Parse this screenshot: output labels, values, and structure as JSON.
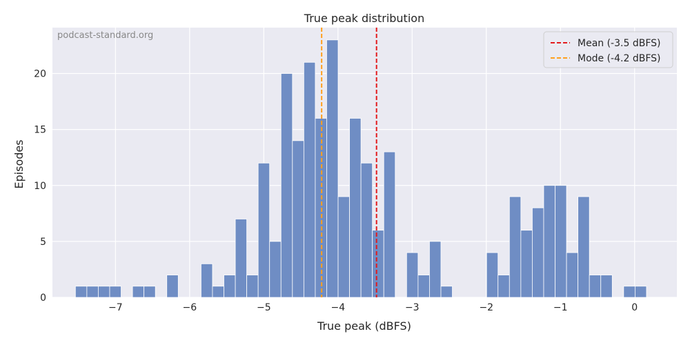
{
  "chart_data": {
    "type": "bar",
    "title": "True peak distribution",
    "xlabel": "True peak (dBFS)",
    "ylabel": "Episodes",
    "watermark": "podcast-standard.org",
    "xlim": [
      -7.85,
      0.57
    ],
    "ylim": [
      0,
      24.1
    ],
    "xticks": [
      -7,
      -6,
      -5,
      -4,
      -3,
      -2,
      -1,
      0
    ],
    "xtick_labels": [
      "−7",
      "−6",
      "−5",
      "−4",
      "−3",
      "−2",
      "−1",
      "0"
    ],
    "yticks": [
      0,
      5,
      10,
      15,
      20
    ],
    "ytick_labels": [
      "0",
      "5",
      "10",
      "15",
      "20"
    ],
    "bin_width": 0.154,
    "bin_starts": [
      -7.54,
      -7.386,
      -7.232,
      -7.078,
      -6.924,
      -6.77,
      -6.616,
      -6.462,
      -6.308,
      -6.154,
      -6.0,
      -5.846,
      -5.692,
      -5.538,
      -5.384,
      -5.23,
      -5.076,
      -4.922,
      -4.768,
      -4.614,
      -4.46,
      -4.306,
      -4.152,
      -3.998,
      -3.844,
      -3.69,
      -3.536,
      -3.382,
      -3.228,
      -3.074,
      -2.92,
      -2.766,
      -2.612,
      -2.458,
      -2.304,
      -2.15,
      -1.996,
      -1.842,
      -1.688,
      -1.534,
      -1.38,
      -1.226,
      -1.072,
      -0.918,
      -0.764,
      -0.61,
      -0.456,
      -0.302,
      -0.148,
      0.006
    ],
    "counts": [
      1,
      1,
      1,
      1,
      0,
      1,
      1,
      0,
      2,
      0,
      0,
      3,
      1,
      2,
      7,
      2,
      12,
      5,
      20,
      14,
      21,
      16,
      23,
      9,
      16,
      12,
      6,
      13,
      0,
      4,
      2,
      5,
      1,
      0,
      0,
      0,
      4,
      2,
      9,
      6,
      8,
      10,
      10,
      4,
      9,
      2,
      2,
      0,
      1,
      1
    ],
    "vlines": [
      {
        "label": "Mean (-3.5 dBFS)",
        "x": -3.48,
        "color": "#e31a1c",
        "style": "dashed"
      },
      {
        "label": "Mode (-4.2 dBFS)",
        "x": -4.22,
        "color": "#ff9f1c",
        "style": "dashed"
      }
    ],
    "legend_position": "top-right",
    "bar_color": "#6f8dc4",
    "background": "#eaeaf2",
    "grid": true
  }
}
